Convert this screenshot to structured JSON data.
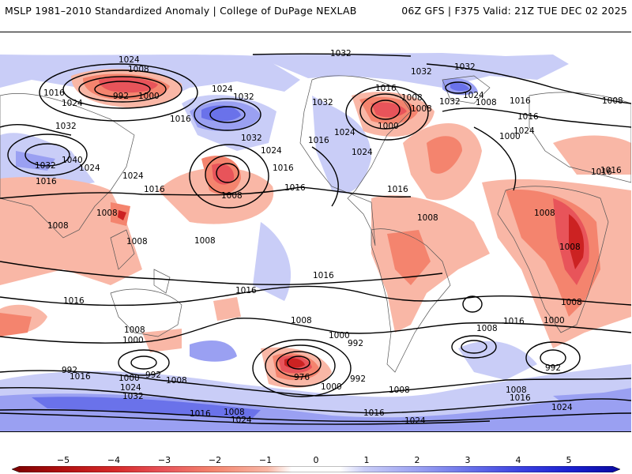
{
  "header": {
    "left_title": "MSLP 1981–2010 Standardized Anomaly | College of DuPage NEXLAB",
    "right_title": "06Z GFS | F375 Valid: 21Z TUE DEC 02 2025"
  },
  "colors": {
    "neg5": "#7a0000",
    "neg4": "#cc2222",
    "neg3": "#e8545a",
    "neg2": "#f4846e",
    "neg1": "#f9b7a6",
    "zero": "#ffffff",
    "pos1": "#c9cdf7",
    "pos2": "#9aa0f2",
    "pos3": "#6a72ea",
    "pos4": "#3a40e0",
    "pos5": "#1010c8",
    "contour": "#000000",
    "land": "#555555"
  },
  "colorbar": {
    "ticks": [
      "−5",
      "−4",
      "−3",
      "−2",
      "−1",
      "0",
      "1",
      "2",
      "3",
      "4",
      "5"
    ]
  },
  "contour_labels": {
    "l1024a": "1024",
    "l1008a": "1008",
    "l992a": "992",
    "l1000a": "1000",
    "l1016a": "1016",
    "l1024b": "1024",
    "l1032a": "1032",
    "l1032b": "1032",
    "l1040a": "1040",
    "l1032c": "1032",
    "l1016b": "1016",
    "l1024c": "1024",
    "l1024d": "1024",
    "l1016c": "1016",
    "l1032d": "1032",
    "l1024e": "1024",
    "l1016d": "1016",
    "l1016e": "1016",
    "l1008b": "1008",
    "l1016f": "1016",
    "l1032top": "1032",
    "l1032e": "1032",
    "l1032f": "1032",
    "l1016g": "1016",
    "l1024f": "1024",
    "l1032g": "1032",
    "l1008c": "1008",
    "l1008d": "1008",
    "l1000b": "1000",
    "l1016h": "1016",
    "l1024g": "1024",
    "l1016i": "1016",
    "l1008e": "1008",
    "l1016j": "1016",
    "l1016k": "1016",
    "l1024h": "1024",
    "l1032h": "1032",
    "l1032i": "1032",
    "l1024i": "1024",
    "l1008f": "1008",
    "l1016l": "1016",
    "l1000c": "1000",
    "l1016m": "1016",
    "l1024j": "1024",
    "l1016n": "1016",
    "l1016o": "1016",
    "l1008g": "1008",
    "l1008h": "1008",
    "l1008i": "1008",
    "l1008j": "1008",
    "l1008k": "1008",
    "l1008l": "1008",
    "l1008m": "1008",
    "l1008n": "1008",
    "l1016p": "1016",
    "l1016q": "1016",
    "l1016r": "1016",
    "l1008o": "1008",
    "l1000d": "1000",
    "l1016s": "1016",
    "l1016t": "1016",
    "l1000e": "1000",
    "l1008p": "1008",
    "l1000f": "1000",
    "l992b": "992",
    "l1016u": "1016",
    "l1000g": "1000",
    "l992c": "992",
    "l1024k": "1024",
    "l1008q": "1008",
    "l976a": "976",
    "l1000h": "1000",
    "l992d": "992",
    "l1008r": "1008",
    "l1016v": "1016",
    "l1008s": "1008",
    "l1024l": "1024",
    "l1016w": "1016",
    "l1024m": "1024",
    "l1008t": "1008",
    "l1016x": "1016",
    "l992e": "992",
    "l1008u": "1008",
    "l1016y": "1016",
    "l1024n": "1024",
    "l1000i": "1000",
    "l1032j": "1032"
  }
}
